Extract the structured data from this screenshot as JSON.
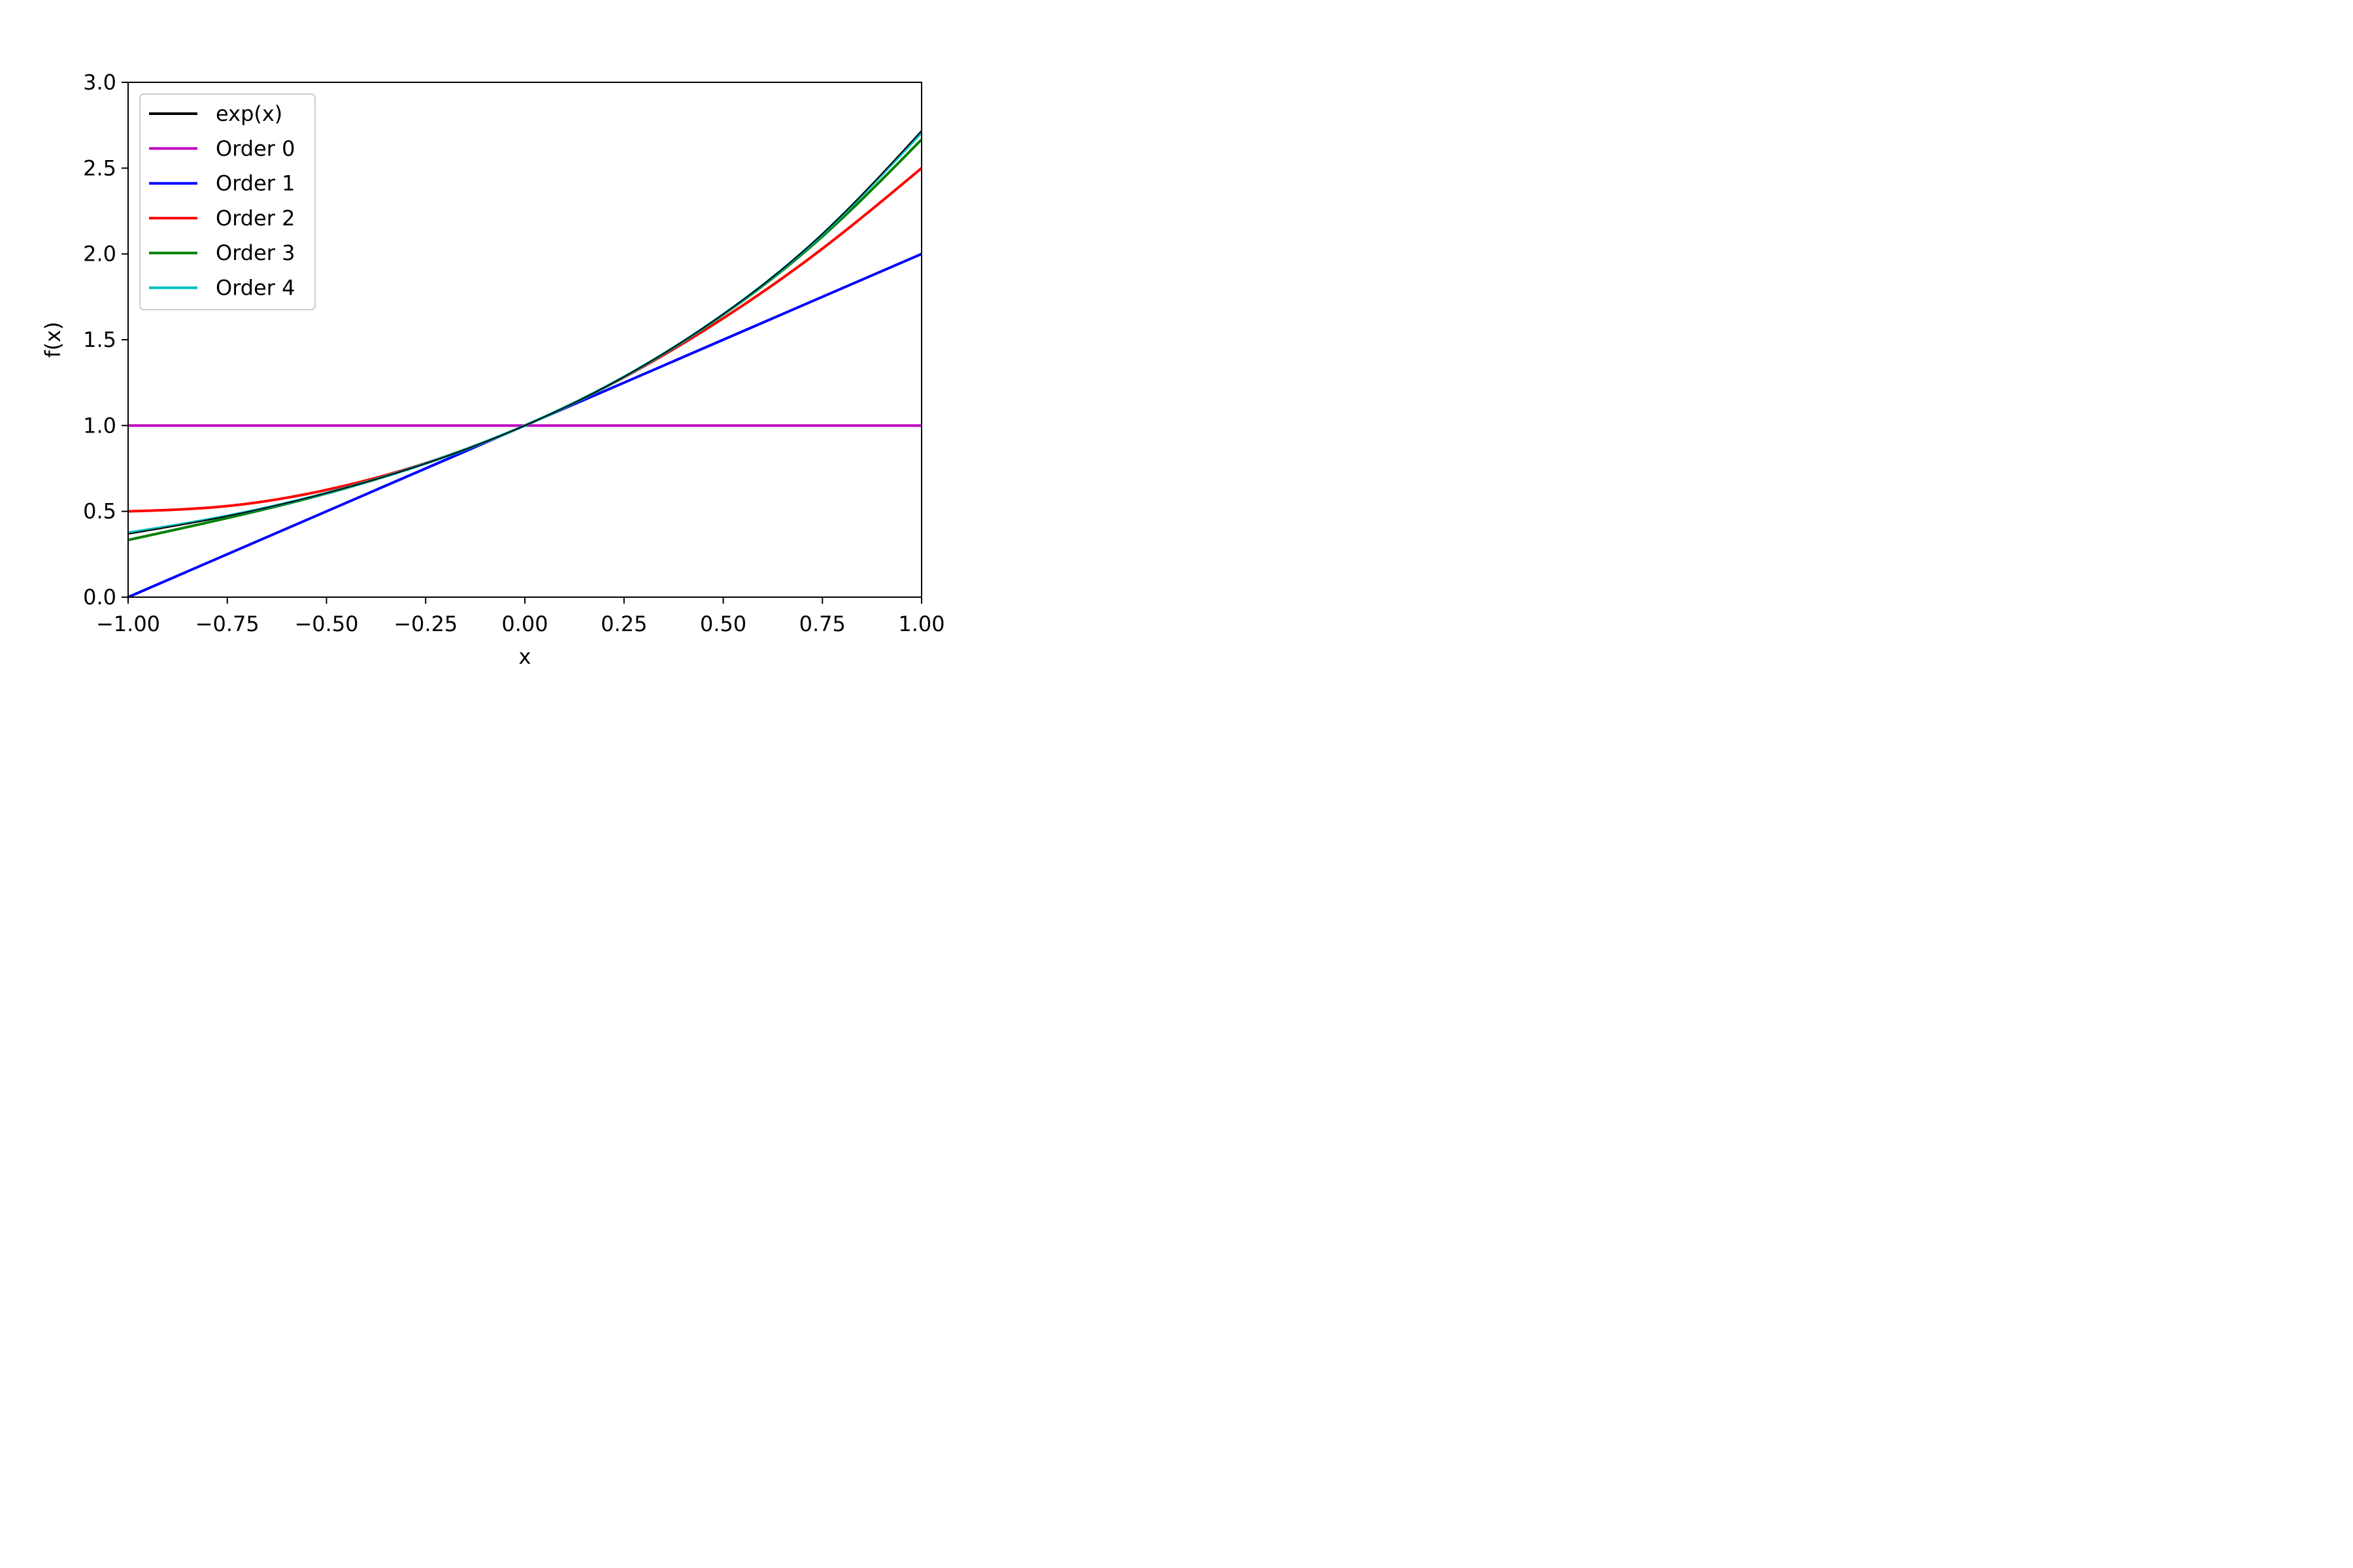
{
  "chart_data": {
    "type": "line",
    "title": "",
    "xlabel": "x",
    "ylabel": "f(x)",
    "xlim": [
      -1.0,
      1.0
    ],
    "ylim": [
      0.0,
      3.0
    ],
    "xticks": [
      -1.0,
      -0.75,
      -0.5,
      -0.25,
      0.0,
      0.25,
      0.5,
      0.75,
      1.0
    ],
    "xtick_labels": [
      "−1.00",
      "−0.75",
      "−0.50",
      "−0.25",
      "0.00",
      "0.25",
      "0.50",
      "0.75",
      "1.00"
    ],
    "yticks": [
      0.0,
      0.5,
      1.0,
      1.5,
      2.0,
      2.5,
      3.0
    ],
    "ytick_labels": [
      "0.0",
      "0.5",
      "1.0",
      "1.5",
      "2.0",
      "2.5",
      "3.0"
    ],
    "grid": false,
    "legend_position": "top-left",
    "x": [
      -1.0,
      -0.75,
      -0.5,
      -0.25,
      0.0,
      0.25,
      0.5,
      0.75,
      1.0
    ],
    "series": [
      {
        "name": "exp(x)",
        "color": "#000000",
        "values": [
          0.368,
          0.472,
          0.607,
          0.779,
          1.0,
          1.284,
          1.649,
          2.117,
          2.718
        ]
      },
      {
        "name": "Order 0",
        "color": "#bf00bf",
        "values": [
          1.0,
          1.0,
          1.0,
          1.0,
          1.0,
          1.0,
          1.0,
          1.0,
          1.0
        ]
      },
      {
        "name": "Order 1",
        "color": "#0000ff",
        "values": [
          0.0,
          0.25,
          0.5,
          0.75,
          1.0,
          1.25,
          1.5,
          1.75,
          2.0
        ]
      },
      {
        "name": "Order 2",
        "color": "#ff0000",
        "values": [
          0.5,
          0.531,
          0.625,
          0.781,
          1.0,
          1.281,
          1.625,
          2.031,
          2.5
        ]
      },
      {
        "name": "Order 3",
        "color": "#008000",
        "values": [
          0.333,
          0.461,
          0.604,
          0.779,
          1.0,
          1.284,
          1.646,
          2.102,
          2.667
        ]
      },
      {
        "name": "Order 4",
        "color": "#00bfbf",
        "values": [
          0.375,
          0.474,
          0.607,
          0.779,
          1.0,
          1.284,
          1.648,
          2.115,
          2.708
        ]
      }
    ]
  }
}
